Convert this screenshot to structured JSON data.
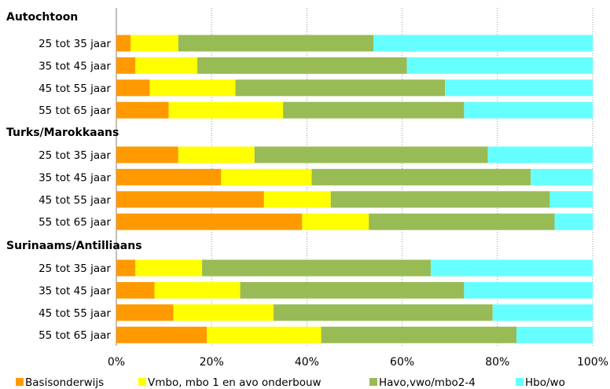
{
  "chart_data": {
    "type": "bar",
    "orientation": "horizontal",
    "stacked": "percent",
    "xlim": [
      0,
      100
    ],
    "x_ticks": [
      "0%",
      "20%",
      "40%",
      "60%",
      "80%",
      "100%"
    ],
    "grid": "vertical dotted",
    "legend_position": "bottom",
    "groups": [
      {
        "name": "Autochtoon",
        "categories": [
          "25 tot 35 jaar",
          "35 tot 45 jaar",
          "45 tot 55 jaar",
          "55 tot 65 jaar"
        ],
        "values": [
          [
            3,
            10,
            41,
            46
          ],
          [
            4,
            13,
            44,
            39
          ],
          [
            7,
            18,
            44,
            31
          ],
          [
            11,
            24,
            38,
            27
          ]
        ]
      },
      {
        "name": "Turks/Marokkaans",
        "categories": [
          "25 tot 35 jaar",
          "35 tot 45 jaar",
          "45 tot 55 jaar",
          "55 tot 65 jaar"
        ],
        "values": [
          [
            13,
            16,
            49,
            22
          ],
          [
            22,
            19,
            46,
            13
          ],
          [
            31,
            14,
            46,
            9
          ],
          [
            39,
            14,
            39,
            8
          ]
        ]
      },
      {
        "name": "Surinaams/Antilliaans",
        "categories": [
          "25 tot 35 jaar",
          "35 tot 45 jaar",
          "45 tot 55 jaar",
          "55 tot 65 jaar"
        ],
        "values": [
          [
            4,
            14,
            48,
            34
          ],
          [
            8,
            18,
            47,
            27
          ],
          [
            12,
            21,
            46,
            21
          ],
          [
            19,
            24,
            41,
            16
          ]
        ]
      }
    ],
    "series": [
      {
        "name": "Basisonderwijs",
        "color": "#ff9900"
      },
      {
        "name": "Vmbo, mbo 1 en avo onderbouw",
        "color": "#ffff00"
      },
      {
        "name": "Havo,vwo/mbo2-4",
        "color": "#99bb55"
      },
      {
        "name": "Hbo/wo",
        "color": "#66ffff"
      }
    ]
  }
}
